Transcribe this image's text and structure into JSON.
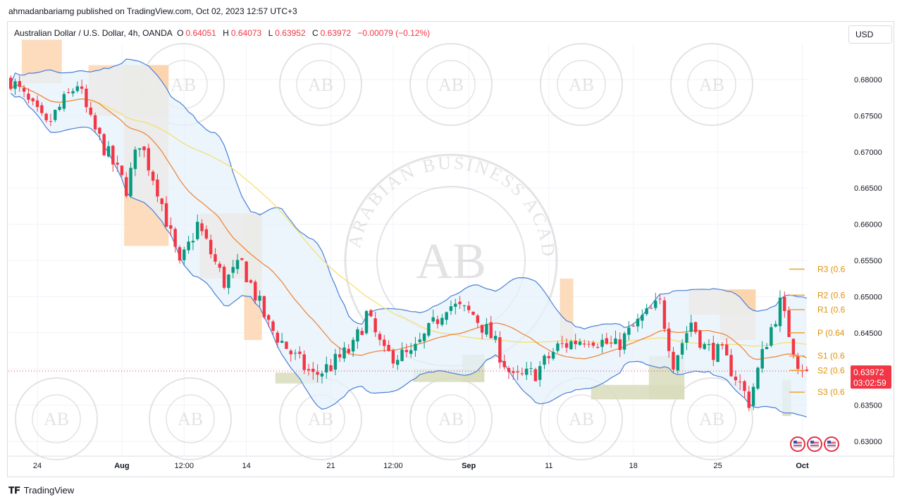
{
  "publish_line": "ahmadanbariamg published on TradingView.com, Oct 02, 2023 12:57 UTC+3",
  "legend": {
    "symbol": "Australian Dollar / U.S. Dollar, 4h, OANDA",
    "o_label": "O",
    "o_value": "0.64051",
    "h_label": "H",
    "h_value": "0.64073",
    "l_label": "L",
    "l_value": "0.63952",
    "c_label": "C",
    "c_value": "0.63972",
    "change": "−0.00079 (−0.12%)"
  },
  "currency_button": "USD",
  "footer_brand": "TradingView",
  "watermark_text": "ARABIAN BUSINESS ACADEMY",
  "watermark_logo": "AB",
  "colors": {
    "up": "#089981",
    "down": "#f23645",
    "bb": "#4a7fd6",
    "bb_fill": "#e6f1fb",
    "ma_fast": "#f0883e",
    "ma_slow": "#f7df70",
    "supply": "#fbd3ab",
    "demand": "#d9dcbc",
    "pivot": "#f0a030",
    "grid": "#f0f3fa"
  },
  "chart_data": {
    "type": "candlestick",
    "symbol": "AUDUSD",
    "timeframe": "4h",
    "ylim": [
      0.628,
      0.686
    ],
    "y_ticks": [
      "0.68000",
      "0.67500",
      "0.67000",
      "0.66500",
      "0.66000",
      "0.65500",
      "0.65000",
      "0.64500",
      "0.64000",
      "0.63500",
      "0.63000"
    ],
    "y_tick_values": [
      0.68,
      0.675,
      0.67,
      0.665,
      0.66,
      0.655,
      0.65,
      0.645,
      0.64,
      0.635,
      0.63
    ],
    "x_ticks": [
      "24",
      "Aug",
      "12:00",
      "14",
      "21",
      "12:00",
      "Sep",
      "11",
      "18",
      "25",
      "Oct"
    ],
    "x_tick_bars": [
      6,
      25,
      39,
      53,
      72,
      86,
      103,
      121,
      140,
      159,
      178
    ],
    "bar_count": 180,
    "price_path": [
      [
        0,
        0.68
      ],
      [
        3,
        0.6775
      ],
      [
        8,
        0.6735
      ],
      [
        15,
        0.6795
      ],
      [
        18,
        0.674
      ],
      [
        26,
        0.665
      ],
      [
        29,
        0.6715
      ],
      [
        33,
        0.665
      ],
      [
        38,
        0.654
      ],
      [
        42,
        0.66
      ],
      [
        48,
        0.652
      ],
      [
        52,
        0.6545
      ],
      [
        58,
        0.646
      ],
      [
        64,
        0.6415
      ],
      [
        68,
        0.639
      ],
      [
        72,
        0.6405
      ],
      [
        77,
        0.643
      ],
      [
        80,
        0.6475
      ],
      [
        84,
        0.642
      ],
      [
        90,
        0.6418
      ],
      [
        95,
        0.646
      ],
      [
        98,
        0.649
      ],
      [
        104,
        0.6475
      ],
      [
        108,
        0.6445
      ],
      [
        113,
        0.6385
      ],
      [
        118,
        0.6395
      ],
      [
        123,
        0.643
      ],
      [
        130,
        0.6445
      ],
      [
        136,
        0.643
      ],
      [
        142,
        0.647
      ],
      [
        146,
        0.649
      ],
      [
        149,
        0.641
      ],
      [
        153,
        0.6465
      ],
      [
        156,
        0.643
      ],
      [
        160,
        0.642
      ],
      [
        163,
        0.639
      ],
      [
        166,
        0.6355
      ],
      [
        170,
        0.644
      ],
      [
        173,
        0.649
      ],
      [
        177,
        0.641
      ],
      [
        179,
        0.6397
      ]
    ],
    "current_price": "0.63972",
    "countdown": "03:02:59",
    "pivots": [
      {
        "label": "R3 (0.6",
        "value": 0.6538
      },
      {
        "label": "R2 (0.6",
        "value": 0.6502
      },
      {
        "label": "R1 (0.6",
        "value": 0.6482
      },
      {
        "label": "P (0.64",
        "value": 0.645
      },
      {
        "label": "S1 (0.6",
        "value": 0.6418
      },
      {
        "label": "S2 (0.6",
        "value": 0.6398
      },
      {
        "label": "S3 (0.6",
        "value": 0.6368
      }
    ],
    "supply_zones": [
      {
        "x0": 3,
        "x1": 12,
        "y0": 0.6795,
        "y1": 0.6855
      },
      {
        "x0": 18,
        "x1": 36,
        "y0": 0.675,
        "y1": 0.682
      },
      {
        "x0": 26,
        "x1": 36,
        "y0": 0.657,
        "y1": 0.682
      },
      {
        "x0": 43,
        "x1": 57,
        "y0": 0.6525,
        "y1": 0.6615
      },
      {
        "x0": 53,
        "x1": 57,
        "y0": 0.644,
        "y1": 0.6615
      },
      {
        "x0": 124,
        "x1": 127,
        "y0": 0.644,
        "y1": 0.6525
      },
      {
        "x0": 153,
        "x1": 168,
        "y0": 0.6475,
        "y1": 0.651
      },
      {
        "x0": 160,
        "x1": 168,
        "y0": 0.644,
        "y1": 0.651
      }
    ],
    "demand_zones": [
      {
        "x0": 60,
        "x1": 70,
        "y0": 0.638,
        "y1": 0.6395
      },
      {
        "x0": 91,
        "x1": 107,
        "y0": 0.6382,
        "y1": 0.64
      },
      {
        "x0": 102,
        "x1": 107,
        "y0": 0.6382,
        "y1": 0.642
      },
      {
        "x0": 131,
        "x1": 152,
        "y0": 0.6358,
        "y1": 0.6378
      },
      {
        "x0": 144,
        "x1": 152,
        "y0": 0.6358,
        "y1": 0.6418
      },
      {
        "x0": 174,
        "x1": 176,
        "y0": 0.6335,
        "y1": 0.6385
      }
    ]
  }
}
